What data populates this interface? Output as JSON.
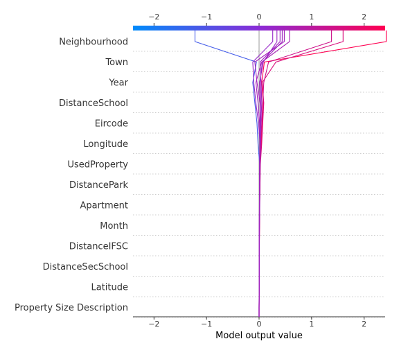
{
  "chart_data": {
    "type": "line",
    "title": "",
    "xlabel": "Model output value",
    "ylabel": "",
    "xlim": [
      -2.4,
      2.4
    ],
    "base_value": 0,
    "xticks": [
      -2,
      -1,
      0,
      1,
      2
    ],
    "xtick_labels": [
      "−2",
      "−1",
      "0",
      "1",
      "2"
    ],
    "grid": "horizontal dotted",
    "colorbar": {
      "position": "top",
      "low_color": "#008bfb",
      "mid_color": "#8a2bd6",
      "high_color": "#ff0051"
    },
    "features": [
      "Property Size Description",
      "Latitude",
      "DistanceSecSchool",
      "DistanceIFSC",
      "Month",
      "Apartment",
      "DistancePark",
      "UsedProperty",
      "Longitude",
      "Eircode",
      "DistanceSchool",
      "Year",
      "Town",
      "Neighbourhood"
    ],
    "series": [
      {
        "values": [
          0,
          0.002,
          0.003,
          0.005,
          0.008,
          0.012,
          0.015,
          0.012,
          -0.02,
          -0.04,
          -0.08,
          -0.12,
          -0.05,
          -1.22
        ]
      },
      {
        "values": [
          0,
          0.002,
          0.003,
          0.005,
          0.008,
          0.012,
          0.016,
          0.02,
          0.04,
          0.06,
          0.08,
          0.05,
          0.1,
          2.42
        ]
      },
      {
        "values": [
          0,
          0.002,
          0.004,
          0.006,
          0.009,
          0.013,
          0.018,
          0.025,
          0.05,
          0.07,
          0.09,
          0.06,
          0.32,
          1.6
        ]
      },
      {
        "values": [
          0,
          0.002,
          0.003,
          0.005,
          0.008,
          0.012,
          0.014,
          0.02,
          0.03,
          0.05,
          0.07,
          0.09,
          0.18,
          1.38
        ]
      },
      {
        "values": [
          0,
          0.001,
          0.002,
          0.004,
          0.006,
          0.01,
          0.012,
          0.015,
          0.02,
          0.01,
          -0.02,
          -0.06,
          0.05,
          0.58
        ]
      },
      {
        "values": [
          0,
          0.001,
          0.002,
          0.004,
          0.006,
          0.01,
          0.012,
          0.016,
          0.025,
          0.03,
          0.02,
          -0.04,
          -0.08,
          0.48
        ]
      },
      {
        "values": [
          0,
          0.001,
          0.002,
          0.003,
          0.005,
          0.008,
          0.01,
          0.012,
          0.02,
          0.035,
          0.05,
          0.04,
          0.02,
          0.4
        ]
      },
      {
        "values": [
          0,
          0.001,
          0.002,
          0.003,
          0.005,
          0.008,
          0.01,
          0.014,
          0.02,
          -0.01,
          -0.06,
          -0.1,
          -0.12,
          0.26
        ]
      },
      {
        "values": [
          0,
          0.001,
          0.002,
          0.003,
          0.004,
          0.007,
          0.009,
          0.011,
          0.015,
          0.02,
          0.02,
          0.01,
          0.08,
          0.34
        ]
      },
      {
        "values": [
          0,
          0.001,
          0.002,
          0.003,
          0.004,
          0.006,
          0.008,
          0.01,
          0.014,
          0.018,
          0.03,
          0.02,
          0.06,
          0.44
        ]
      }
    ]
  }
}
